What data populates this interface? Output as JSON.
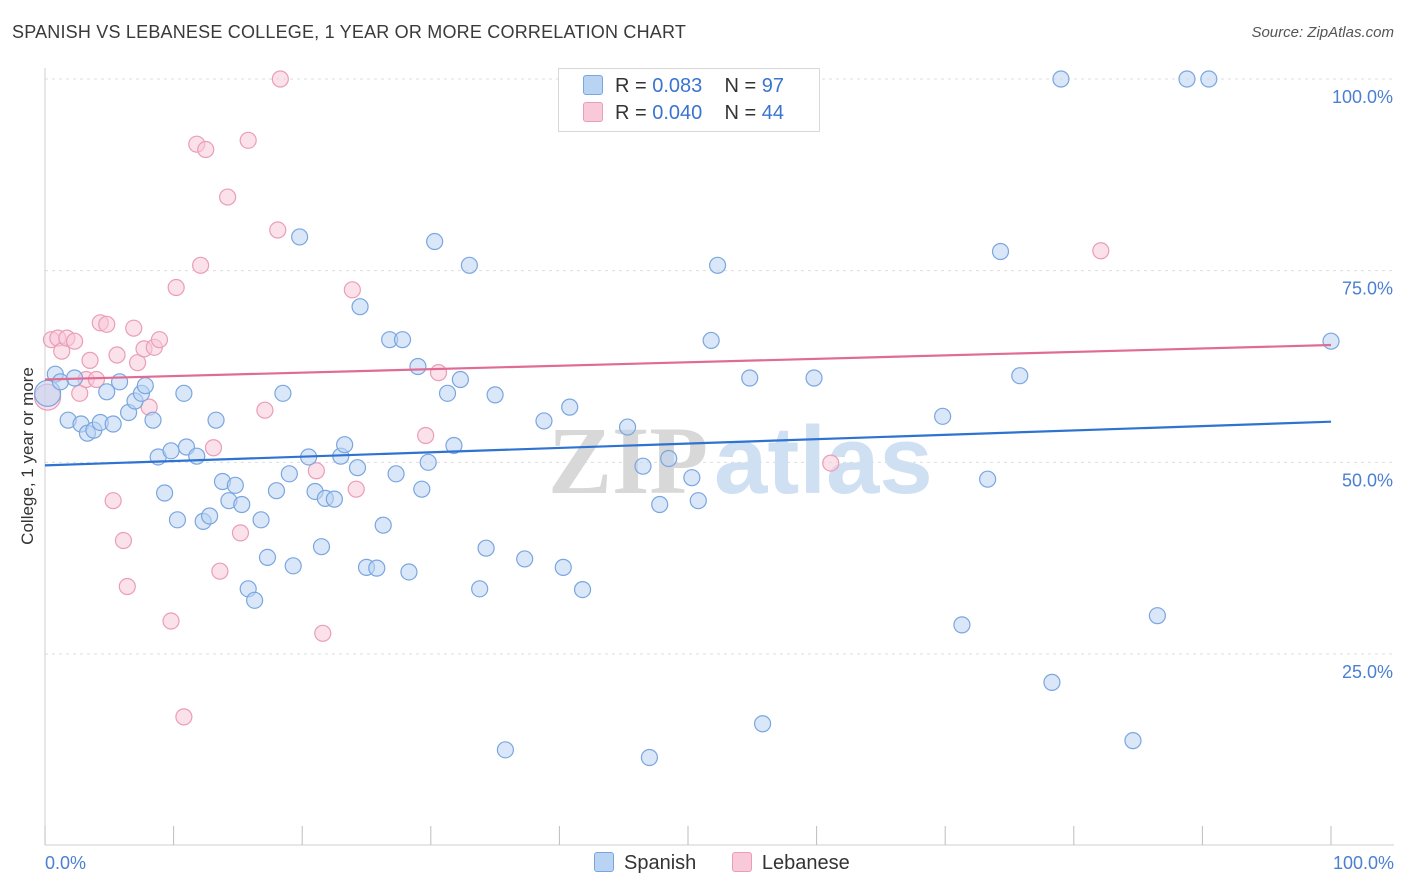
{
  "title": "SPANISH VS LEBANESE COLLEGE, 1 YEAR OR MORE CORRELATION CHART",
  "source": "Source: ZipAtlas.com",
  "watermark": {
    "zip": "ZIP",
    "atlas": "atlas"
  },
  "legend": {
    "rows": [
      {
        "r_label": "R =",
        "r_value": "0.083",
        "n_label": "N =",
        "n_value": "97"
      },
      {
        "r_label": "R =",
        "r_value": "0.040",
        "n_label": "N =",
        "n_value": "44"
      }
    ]
  },
  "bottom_legend": {
    "spanish": "Spanish",
    "lebanese": "Lebanese"
  },
  "colors": {
    "spanish_fill": "#b9d3f2",
    "spanish_stroke": "#7aa6e0",
    "spanish_line": "#2e72d2",
    "lebanese_fill": "#f8c9d8",
    "lebanese_stroke": "#eb9db6",
    "lebanese_line": "#e06b93",
    "tick_text": "#4a7fd1",
    "grid": "#dddddd"
  },
  "chart_data": {
    "type": "scatter",
    "title": "SPANISH VS LEBANESE COLLEGE, 1 YEAR OR MORE CORRELATION CHART",
    "xlabel": "",
    "ylabel": "College, 1 year or more",
    "xlim": [
      0,
      100
    ],
    "ylim": [
      2,
      105
    ],
    "x_tick_labels": [
      "0.0%",
      "100.0%"
    ],
    "y_ticks": [
      25,
      50,
      75,
      100
    ],
    "y_tick_labels": [
      "25.0%",
      "50.0%",
      "75.0%",
      "100.0%"
    ],
    "series": [
      {
        "name": "Spanish",
        "r": 0.083,
        "n": 97,
        "trend": {
          "x": [
            0,
            100
          ],
          "y": [
            49.6,
            55.3
          ]
        },
        "points": [
          [
            0.2,
            59.0
          ],
          [
            0.8,
            61.5
          ],
          [
            1.2,
            60.5
          ],
          [
            1.8,
            55.5
          ],
          [
            2.3,
            61.0
          ],
          [
            2.8,
            55.0
          ],
          [
            3.3,
            53.8
          ],
          [
            3.8,
            54.2
          ],
          [
            4.3,
            55.2
          ],
          [
            4.8,
            59.2
          ],
          [
            5.3,
            55.0
          ],
          [
            5.8,
            60.5
          ],
          [
            6.5,
            56.5
          ],
          [
            7.0,
            58.0
          ],
          [
            7.5,
            59.0
          ],
          [
            7.8,
            60.0
          ],
          [
            8.4,
            55.5
          ],
          [
            8.8,
            50.7
          ],
          [
            9.3,
            46.0
          ],
          [
            9.8,
            51.5
          ],
          [
            10.3,
            42.5
          ],
          [
            10.8,
            59.0
          ],
          [
            11.0,
            52.0
          ],
          [
            11.8,
            50.8
          ],
          [
            12.3,
            42.3
          ],
          [
            12.8,
            43.0
          ],
          [
            13.3,
            55.5
          ],
          [
            13.8,
            47.5
          ],
          [
            14.3,
            45.0
          ],
          [
            14.8,
            47.0
          ],
          [
            15.3,
            44.5
          ],
          [
            15.8,
            33.5
          ],
          [
            16.3,
            32.0
          ],
          [
            16.8,
            42.5
          ],
          [
            17.3,
            37.6
          ],
          [
            18.0,
            46.3
          ],
          [
            18.5,
            59.0
          ],
          [
            19.0,
            48.5
          ],
          [
            19.3,
            36.5
          ],
          [
            19.8,
            79.4
          ],
          [
            20.5,
            50.7
          ],
          [
            21.0,
            46.2
          ],
          [
            21.5,
            39.0
          ],
          [
            21.8,
            45.3
          ],
          [
            22.5,
            45.2
          ],
          [
            23.0,
            50.8
          ],
          [
            23.3,
            52.3
          ],
          [
            24.3,
            49.3
          ],
          [
            24.5,
            70.3
          ],
          [
            25.0,
            36.3
          ],
          [
            25.8,
            36.2
          ],
          [
            26.3,
            41.8
          ],
          [
            26.8,
            66.0
          ],
          [
            27.3,
            48.5
          ],
          [
            27.8,
            66.0
          ],
          [
            28.3,
            35.7
          ],
          [
            29.0,
            62.5
          ],
          [
            29.3,
            46.5
          ],
          [
            29.8,
            50.0
          ],
          [
            30.3,
            78.8
          ],
          [
            31.3,
            59.0
          ],
          [
            31.8,
            52.2
          ],
          [
            32.3,
            60.8
          ],
          [
            33.0,
            75.7
          ],
          [
            33.8,
            33.5
          ],
          [
            34.3,
            38.8
          ],
          [
            35.0,
            58.8
          ],
          [
            35.8,
            12.5
          ],
          [
            37.3,
            37.4
          ],
          [
            38.8,
            55.4
          ],
          [
            40.3,
            36.3
          ],
          [
            40.8,
            57.2
          ],
          [
            41.8,
            33.4
          ],
          [
            45.3,
            54.6
          ],
          [
            46.5,
            49.5
          ],
          [
            47.0,
            11.5
          ],
          [
            47.8,
            44.5
          ],
          [
            48.5,
            50.5
          ],
          [
            50.3,
            48.0
          ],
          [
            50.8,
            45.0
          ],
          [
            51.8,
            65.9
          ],
          [
            52.3,
            75.7
          ],
          [
            54.8,
            61.0
          ],
          [
            55.8,
            15.9
          ],
          [
            59.8,
            61.0
          ],
          [
            69.8,
            56.0
          ],
          [
            71.3,
            28.8
          ],
          [
            73.3,
            47.8
          ],
          [
            74.3,
            77.5
          ],
          [
            75.8,
            61.3
          ],
          [
            78.3,
            21.3
          ],
          [
            79.0,
            100.0
          ],
          [
            84.6,
            13.7
          ],
          [
            86.5,
            30.0
          ],
          [
            88.8,
            100.0
          ],
          [
            90.5,
            100.0
          ],
          [
            100.0,
            65.8
          ]
        ]
      },
      {
        "name": "Lebanese",
        "r": 0.04,
        "n": 44,
        "trend": {
          "x": [
            0,
            100
          ],
          "y": [
            60.8,
            65.3
          ]
        },
        "points": [
          [
            0.2,
            58.5
          ],
          [
            0.5,
            66.0
          ],
          [
            1.0,
            66.2
          ],
          [
            1.3,
            64.5
          ],
          [
            1.7,
            66.2
          ],
          [
            2.3,
            65.8
          ],
          [
            2.7,
            59.0
          ],
          [
            3.2,
            60.8
          ],
          [
            3.5,
            63.3
          ],
          [
            4.0,
            60.8
          ],
          [
            4.3,
            68.2
          ],
          [
            4.8,
            68.0
          ],
          [
            5.3,
            45.0
          ],
          [
            5.6,
            64.0
          ],
          [
            6.1,
            39.8
          ],
          [
            6.4,
            33.8
          ],
          [
            6.9,
            67.5
          ],
          [
            7.2,
            63.0
          ],
          [
            7.7,
            64.8
          ],
          [
            8.1,
            57.2
          ],
          [
            8.5,
            65.0
          ],
          [
            8.9,
            66.0
          ],
          [
            9.8,
            29.3
          ],
          [
            10.2,
            72.8
          ],
          [
            10.8,
            16.8
          ],
          [
            11.8,
            91.5
          ],
          [
            12.1,
            75.7
          ],
          [
            12.5,
            90.8
          ],
          [
            13.1,
            51.9
          ],
          [
            13.6,
            35.8
          ],
          [
            14.2,
            84.6
          ],
          [
            15.2,
            40.8
          ],
          [
            15.8,
            92.0
          ],
          [
            17.1,
            56.8
          ],
          [
            18.1,
            80.3
          ],
          [
            18.3,
            100.0
          ],
          [
            21.1,
            48.9
          ],
          [
            21.6,
            27.7
          ],
          [
            23.9,
            72.5
          ],
          [
            24.2,
            46.5
          ],
          [
            29.6,
            53.5
          ],
          [
            30.6,
            61.7
          ],
          [
            61.1,
            49.9
          ],
          [
            82.1,
            77.6
          ]
        ]
      }
    ]
  }
}
